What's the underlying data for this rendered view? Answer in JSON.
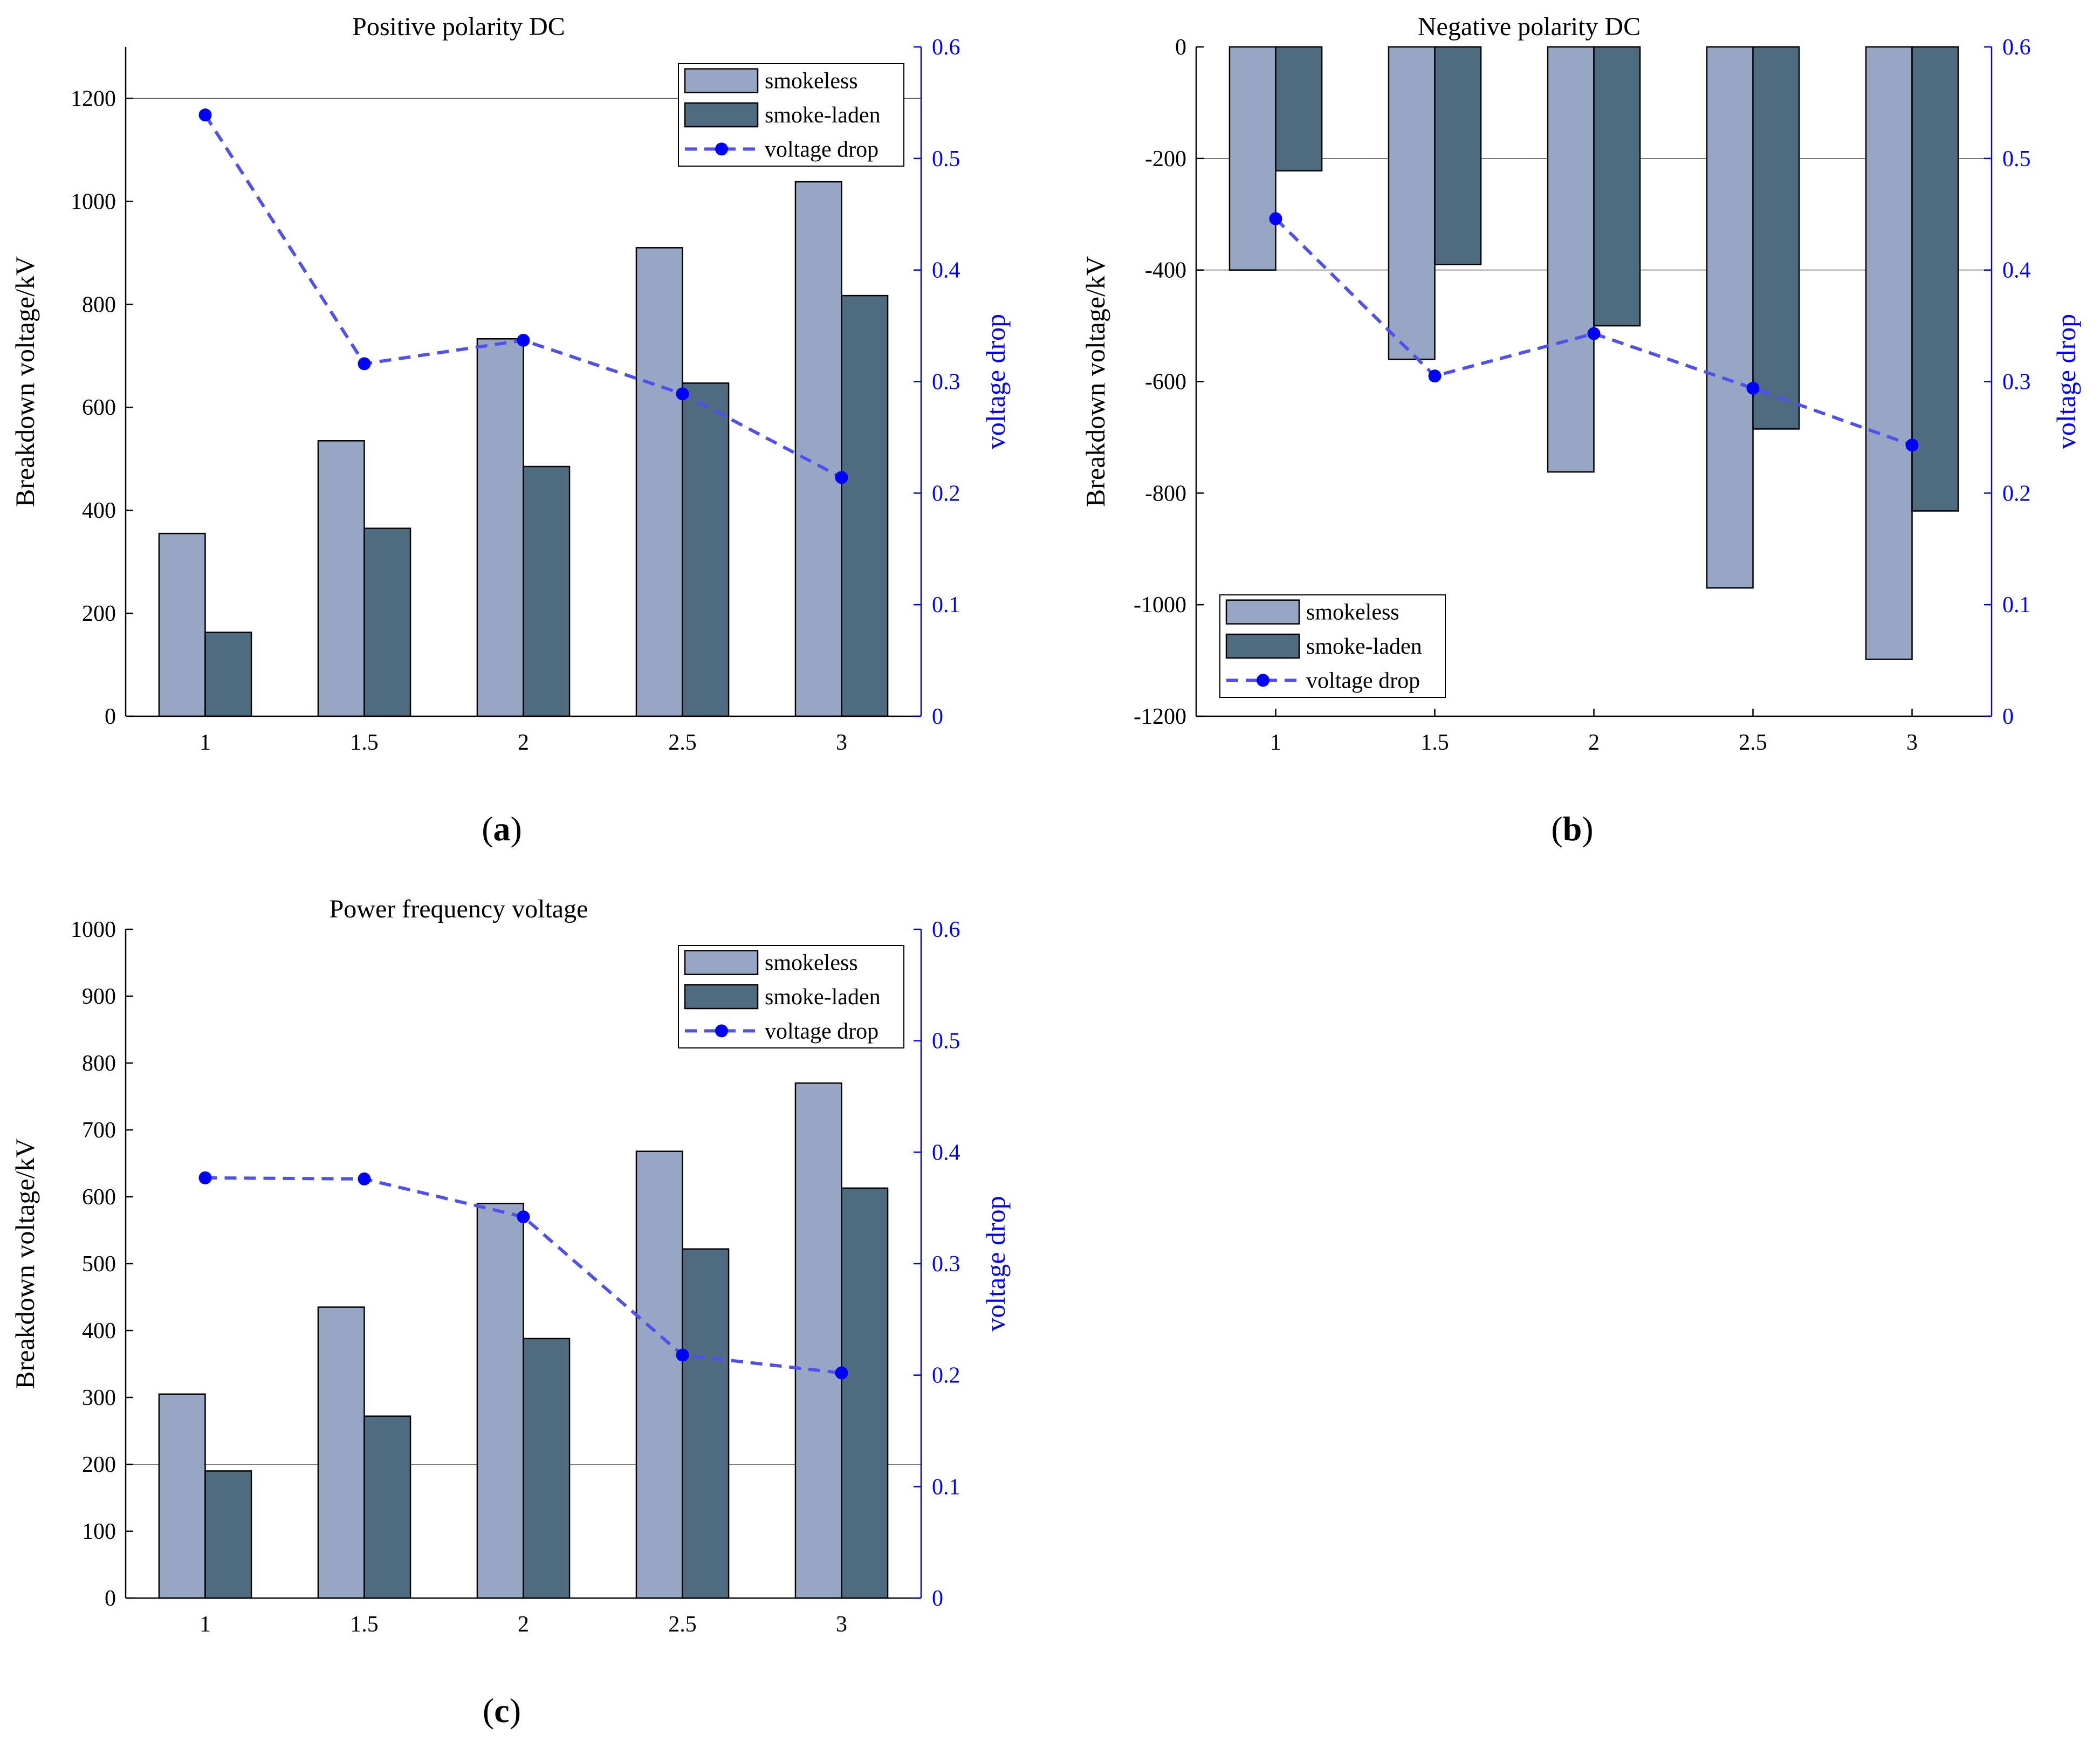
{
  "colors": {
    "smokeless": "#97a6c4",
    "smoke_laden": "#4f6b80",
    "voltage_drop": "#5050ee",
    "marker": "#0000ff",
    "right_axis": "#0000ff"
  },
  "chart_data": [
    {
      "type": "bar",
      "title": "Positive polarity DC",
      "panel_label": "a",
      "xlabel": "",
      "ylabel": "Breakdown voltage/kV",
      "ylabel_right": "voltage drop",
      "categories": [
        "1",
        "1.5",
        "2",
        "2.5",
        "3"
      ],
      "ylim": [
        0,
        1300
      ],
      "yticks": [
        "0",
        "200",
        "400",
        "600",
        "800",
        "1000",
        "1200"
      ],
      "ylim_right": [
        0,
        0.6
      ],
      "yticks_right": [
        "0",
        "0.1",
        "0.2",
        "0.3",
        "0.4",
        "0.5",
        "0.6"
      ],
      "legend": [
        "smokeless",
        "smoke-laden",
        "voltage drop"
      ],
      "legend_position": "top-right",
      "series": [
        {
          "name": "smokeless",
          "kind": "bar",
          "values": [
            355,
            535,
            733,
            910,
            1038
          ]
        },
        {
          "name": "smoke-laden",
          "kind": "bar",
          "values": [
            163,
            365,
            485,
            647,
            817
          ]
        },
        {
          "name": "voltage drop",
          "kind": "line",
          "axis": "right",
          "values": [
            0.539,
            0.316,
            0.337,
            0.289,
            0.214
          ]
        }
      ]
    },
    {
      "type": "bar",
      "title": "Negative polarity DC",
      "panel_label": "b",
      "xlabel": "",
      "ylabel": "Breakdown voltage/kV",
      "ylabel_right": "voltage drop",
      "categories": [
        "1",
        "1.5",
        "2",
        "2.5",
        "3"
      ],
      "ylim": [
        -1200,
        0
      ],
      "yticks": [
        "-1200",
        "-1000",
        "-800",
        "-600",
        "-400",
        "-200",
        "0"
      ],
      "ylim_right": [
        0,
        0.6
      ],
      "yticks_right": [
        "0",
        "0.1",
        "0.2",
        "0.3",
        "0.4",
        "0.5",
        "0.6"
      ],
      "legend": [
        "smokeless",
        "smoke-laden",
        "voltage drop"
      ],
      "legend_position": "bottom-left",
      "series": [
        {
          "name": "smokeless",
          "kind": "bar",
          "values": [
            -400,
            -560,
            -762,
            -970,
            -1098
          ]
        },
        {
          "name": "smoke-laden",
          "kind": "bar",
          "values": [
            -222,
            -390,
            -500,
            -685,
            -832
          ]
        },
        {
          "name": "voltage drop",
          "kind": "line",
          "axis": "right",
          "values": [
            0.446,
            0.305,
            0.343,
            0.294,
            0.243
          ]
        }
      ]
    },
    {
      "type": "bar",
      "title": "Power frequency voltage",
      "panel_label": "c",
      "xlabel": "",
      "ylabel": "Breakdown voltage/kV",
      "ylabel_right": "voltage drop",
      "categories": [
        "1",
        "1.5",
        "2",
        "2.5",
        "3"
      ],
      "ylim": [
        0,
        1000
      ],
      "yticks": [
        "0",
        "100",
        "200",
        "300",
        "400",
        "500",
        "600",
        "700",
        "800",
        "900",
        "1000"
      ],
      "ylim_right": [
        0,
        0.6
      ],
      "yticks_right": [
        "0",
        "0.1",
        "0.2",
        "0.3",
        "0.4",
        "0.5",
        "0.6"
      ],
      "legend": [
        "smokeless",
        "smoke-laden",
        "voltage drop"
      ],
      "legend_position": "top-right",
      "series": [
        {
          "name": "smokeless",
          "kind": "bar",
          "values": [
            305,
            435,
            590,
            668,
            770
          ]
        },
        {
          "name": "smoke-laden",
          "kind": "bar",
          "values": [
            190,
            272,
            388,
            522,
            613
          ]
        },
        {
          "name": "voltage drop",
          "kind": "line",
          "axis": "right",
          "values": [
            0.377,
            0.376,
            0.342,
            0.218,
            0.202
          ]
        }
      ]
    }
  ]
}
